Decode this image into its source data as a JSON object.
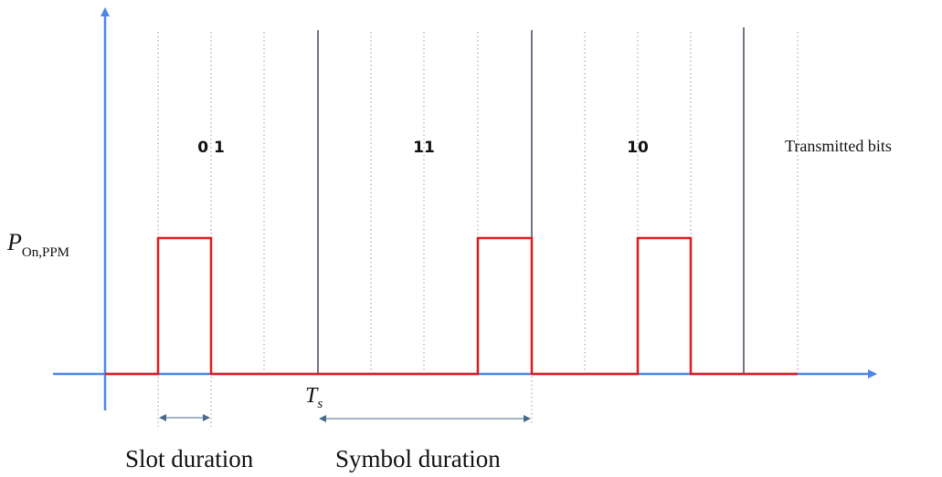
{
  "diagram": {
    "bit_labels": [
      "0 1",
      "11",
      "10"
    ],
    "transmitted_bits_label": "Transmitted bits",
    "power_label_main": "P",
    "power_label_sub": "On,PPM",
    "ts_label_main": "T",
    "ts_label_sub": "s",
    "slot_duration_label": "Slot duration",
    "symbol_duration_label": "Symbol duration",
    "colors": {
      "axis": "#4a86e8",
      "signal": "#e0191d",
      "symbol_boundary": "#3b4a5c",
      "slot_divider": "#9a9a9a",
      "dimension": "#4a6a8a"
    }
  }
}
